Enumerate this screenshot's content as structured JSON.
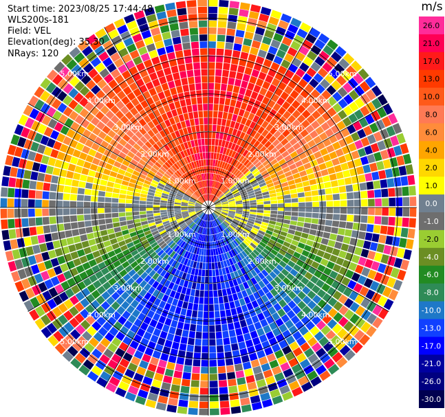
{
  "header": {
    "start_time": "Start time: 2023/08/25 17:44:48",
    "instrument": "WLS200s-181",
    "field": "Field: VEL",
    "elevation": "Elevation(deg): 35.30",
    "nrays": "NRays: 120"
  },
  "ppi": {
    "range_rings": [
      {
        "label": "1.00km",
        "radius_km": 1
      },
      {
        "label": "2.00km",
        "radius_km": 2
      },
      {
        "label": "3.00km",
        "radius_km": 3
      },
      {
        "label": "4.00km",
        "radius_km": 4
      },
      {
        "label": "5.00km",
        "radius_km": 5
      }
    ],
    "max_range_km": 5.5,
    "nrays": 120,
    "spokes_deg": [
      0,
      30,
      60,
      90,
      120,
      150,
      180,
      210,
      240,
      270,
      300,
      330
    ]
  },
  "colorbar": {
    "unit": "m/s",
    "labels": [
      "26.0",
      "21.0",
      "17.0",
      "13.0",
      "10.0",
      "8.0",
      "6.0",
      "4.0",
      "2.0",
      "1.0",
      "0.0",
      "-1.0",
      "-2.0",
      "-4.0",
      "-6.0",
      "-8.0",
      "-10.0",
      "-13.0",
      "-17.0",
      "-21.0",
      "-26.0",
      "-30.0"
    ],
    "colors": [
      "#ff2c9a",
      "#ff0055",
      "#ff1a1a",
      "#ff3a00",
      "#ff5a1a",
      "#ff7a55",
      "#ff8c3a",
      "#ffa500",
      "#ffd700",
      "#ffff00",
      "#708090",
      "#6e6e6e",
      "#9acd32",
      "#6b8e23",
      "#228b22",
      "#2e8b57",
      "#1e78c8",
      "#1040ff",
      "#0000ff",
      "#0000a0",
      "#000080",
      "#000050"
    ]
  }
}
